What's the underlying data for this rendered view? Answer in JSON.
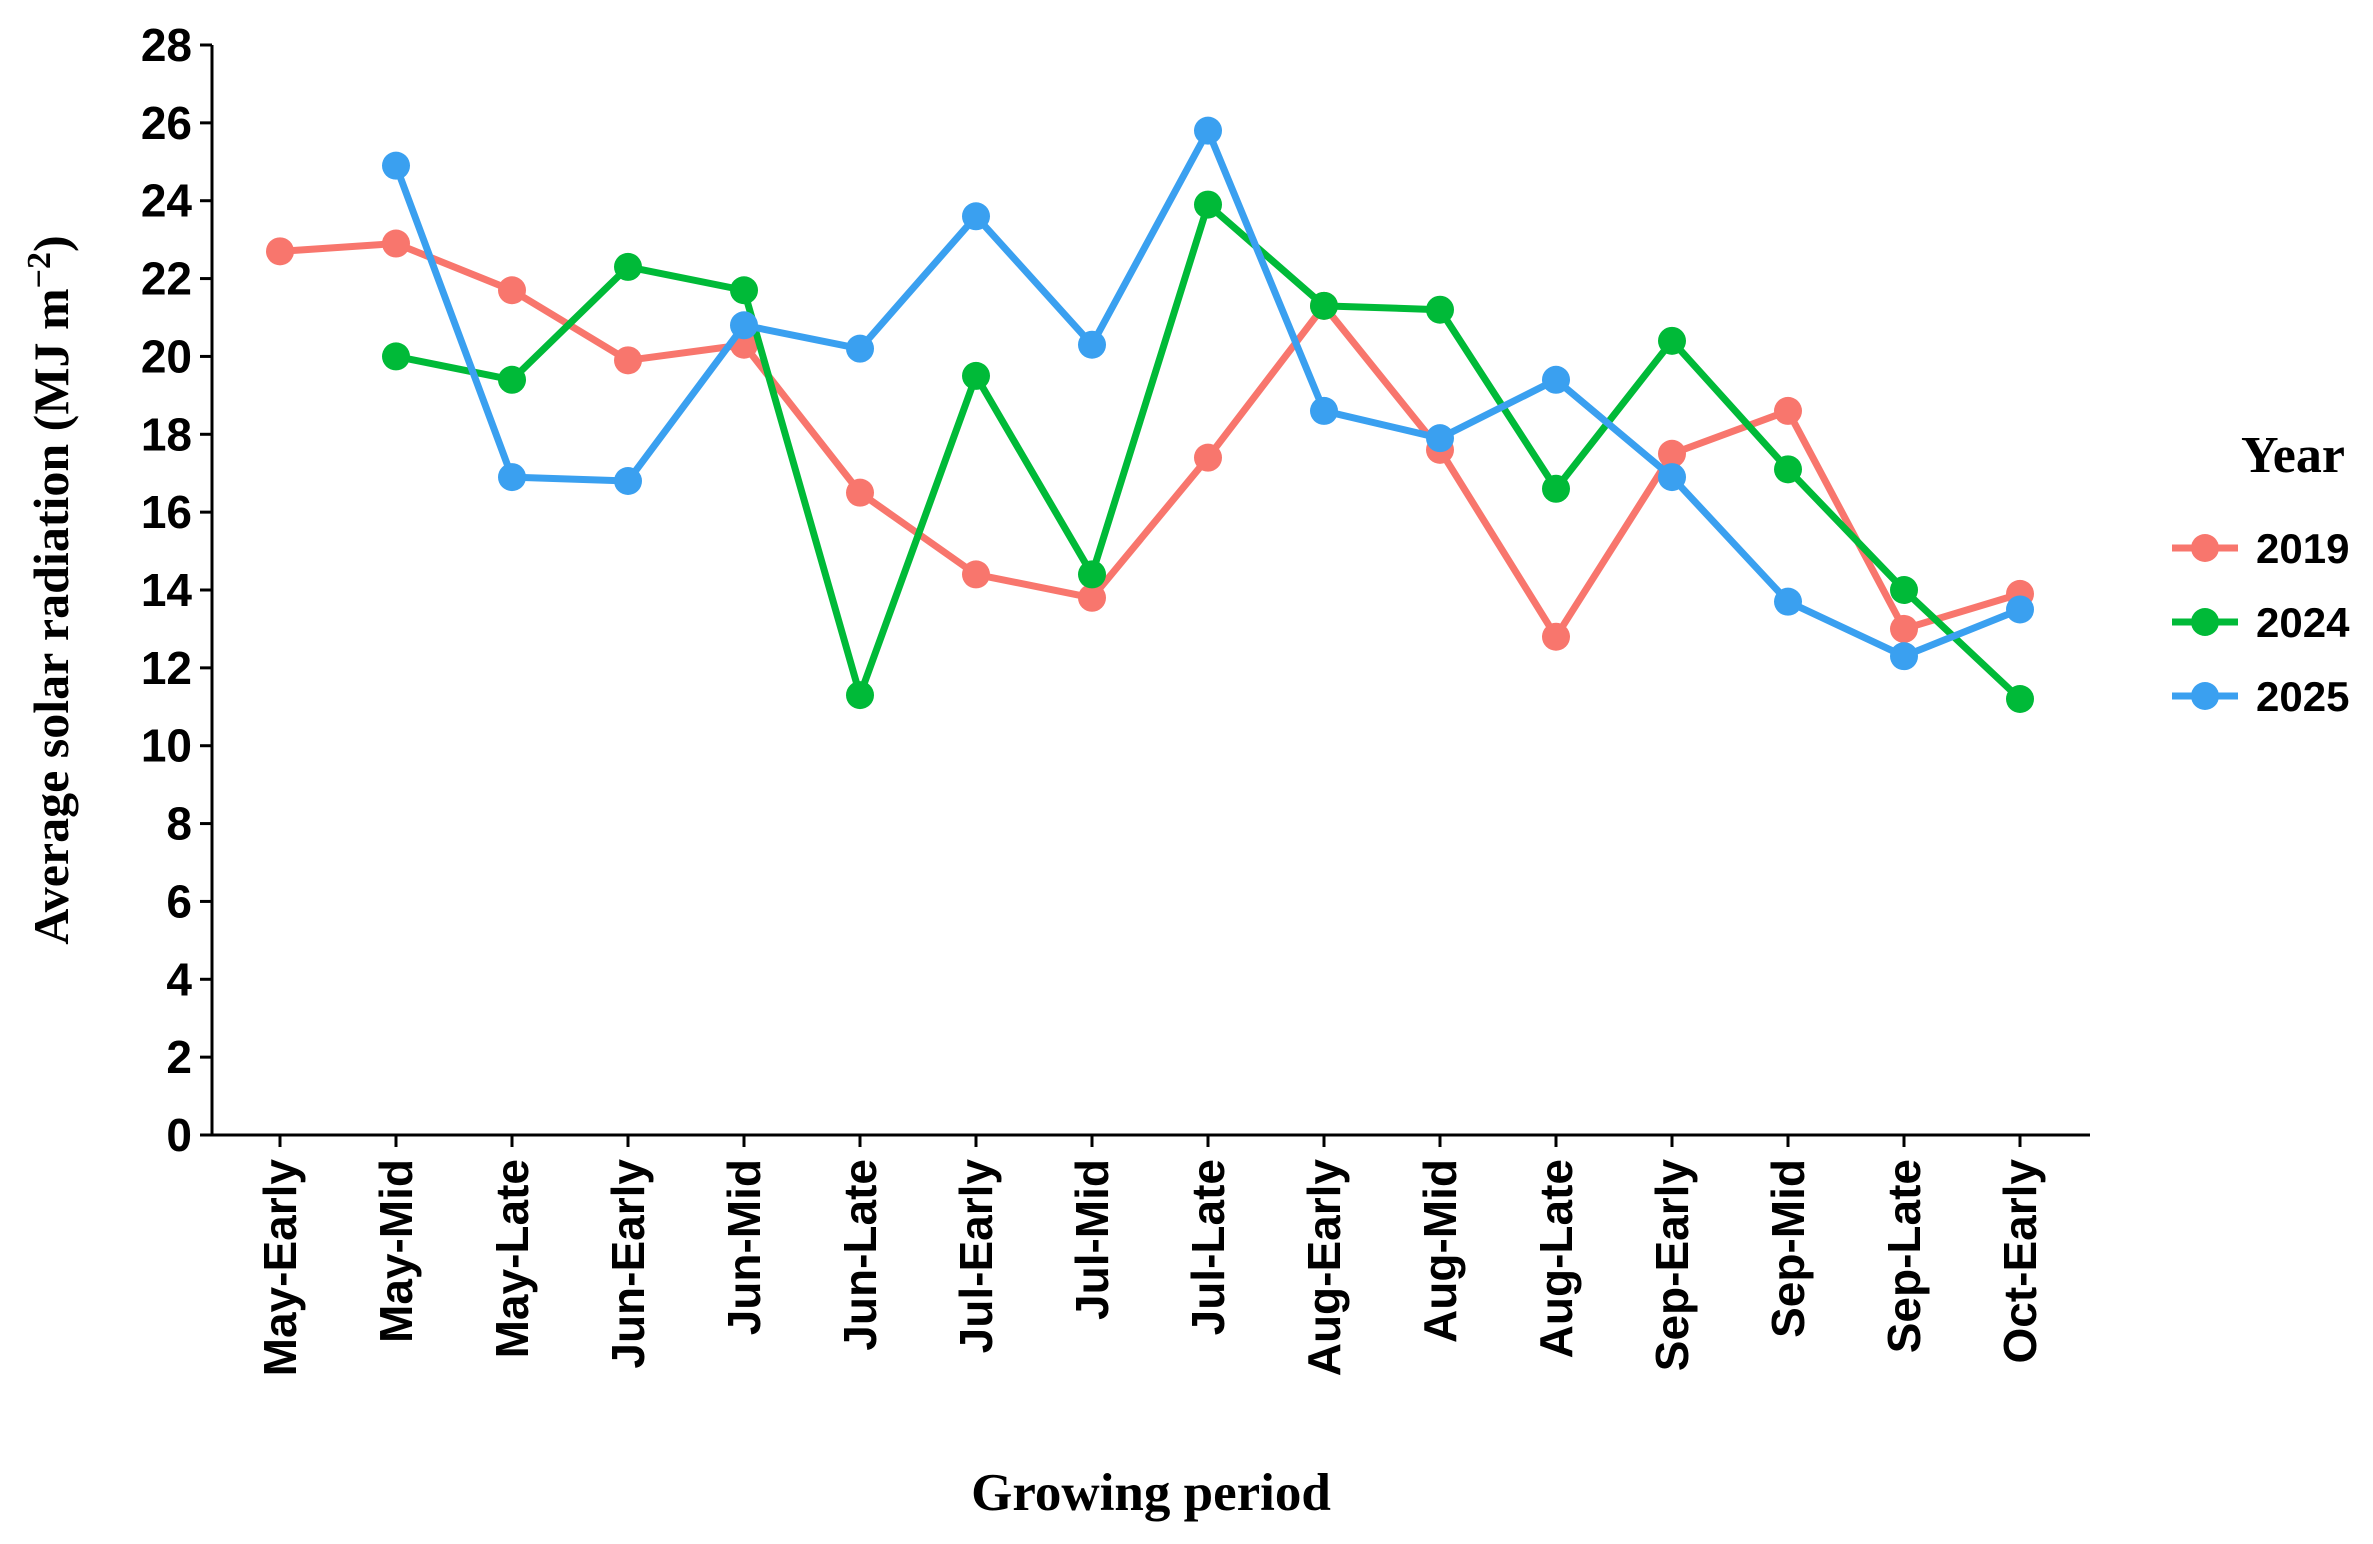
{
  "chart_data": {
    "type": "line",
    "title": "",
    "xlabel": "Growing period",
    "ylabel": "Average solar radiation (MJ m",
    "ylabel_sup": "−2",
    "ylabel_close": ")",
    "ylim": [
      0,
      28
    ],
    "yticks": [
      "0",
      "2",
      "4",
      "6",
      "8",
      "10",
      "12",
      "14",
      "16",
      "18",
      "20",
      "22",
      "24",
      "26",
      "28"
    ],
    "categories": [
      "May-Early",
      "May-Mid",
      "May-Late",
      "Jun-Early",
      "Jun-Mid",
      "Jun-Late",
      "Jul-Early",
      "Jul-Mid",
      "Jul-Late",
      "Aug-Early",
      "Aug-Mid",
      "Aug-Late",
      "Sep-Early",
      "Sep-Mid",
      "Sep-Late",
      "Oct-Early"
    ],
    "legend_title": "Year",
    "legend_position": "right",
    "series": [
      {
        "name": "2019",
        "color": "#F8766D",
        "values": [
          22.7,
          22.9,
          21.7,
          19.9,
          20.3,
          16.5,
          14.4,
          13.8,
          17.4,
          21.3,
          17.6,
          12.8,
          17.5,
          18.6,
          13.0,
          13.9
        ]
      },
      {
        "name": "2024",
        "color": "#00BA38",
        "values": [
          null,
          20.0,
          19.4,
          22.3,
          21.7,
          11.3,
          19.5,
          14.4,
          23.9,
          21.3,
          21.2,
          16.6,
          20.4,
          17.1,
          14.0,
          11.2
        ]
      },
      {
        "name": "2025",
        "color": "#3AA0F0",
        "values": [
          null,
          24.9,
          16.9,
          16.8,
          20.8,
          20.2,
          23.6,
          20.3,
          25.8,
          18.6,
          17.9,
          19.4,
          16.9,
          13.7,
          12.3,
          13.5
        ]
      }
    ]
  }
}
